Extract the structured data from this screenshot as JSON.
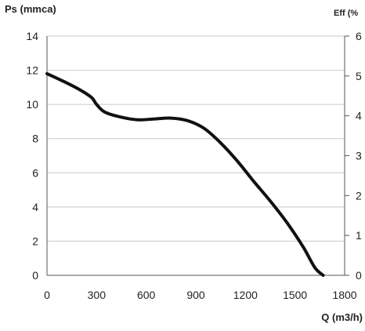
{
  "chart_data": {
    "type": "line",
    "ylabel": "Ps (mmca)",
    "y2label": "Eff (%",
    "xlabel": "Q (m3/h)",
    "xlim": [
      0,
      1800
    ],
    "ylim": [
      0,
      14
    ],
    "y2lim": [
      0,
      6
    ],
    "x_ticks": [
      "0",
      "300",
      "600",
      "900",
      "1200",
      "1500",
      "1800"
    ],
    "y_ticks": [
      "0",
      "2",
      "4",
      "6",
      "8",
      "10",
      "12",
      "14"
    ],
    "y2_ticks": [
      "0",
      "1",
      "2",
      "3",
      "4",
      "5",
      "6"
    ],
    "grid": true,
    "colors": {
      "curve": "#111111",
      "grid": "#c8c8c8",
      "axis": "#555555"
    },
    "series": [
      {
        "x": [
          0,
          100,
          200,
          270,
          300,
          350,
          450,
          550,
          650,
          750,
          850,
          950,
          1050,
          1150,
          1250,
          1350,
          1450,
          1550,
          1620,
          1670
        ],
        "values": [
          11.8,
          11.35,
          10.85,
          10.4,
          10.0,
          9.55,
          9.25,
          9.1,
          9.15,
          9.2,
          9.05,
          8.6,
          7.75,
          6.7,
          5.5,
          4.35,
          3.1,
          1.65,
          0.45,
          0.0
        ]
      }
    ]
  }
}
